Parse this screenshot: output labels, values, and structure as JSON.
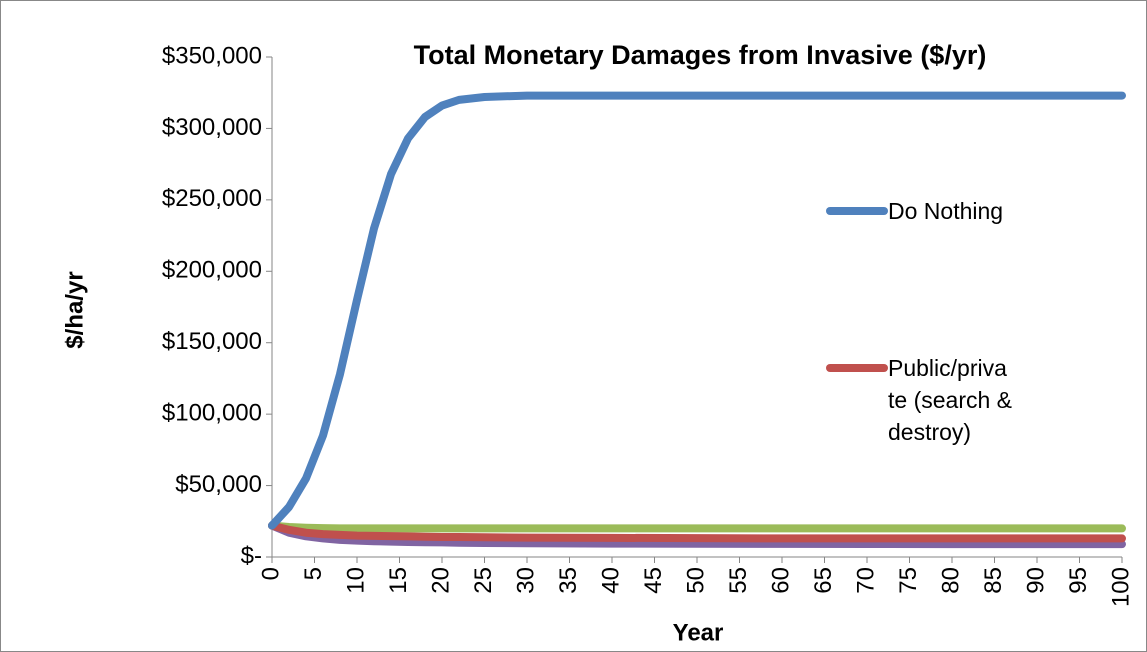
{
  "chart_data": {
    "type": "line",
    "title": "Total Monetary Damages from Invasive ($/yr)",
    "x_label": "Year",
    "y_label": "$/ha/yr",
    "x": [
      0,
      2,
      4,
      6,
      8,
      10,
      12,
      14,
      16,
      18,
      20,
      22,
      25,
      30,
      40,
      50,
      60,
      70,
      80,
      90,
      100
    ],
    "series": [
      {
        "name": "Do Nothing",
        "color": "#4f81bd",
        "values": [
          22000,
          35000,
          55000,
          85000,
          128000,
          180000,
          230000,
          268000,
          293000,
          308000,
          316000,
          320000,
          322000,
          323000,
          323000,
          323000,
          323000,
          323000,
          323000,
          323000,
          323000
        ]
      },
      {
        "name": "Public/private (search & destroy)",
        "color": "#c0504d",
        "values": [
          22000,
          19000,
          17000,
          16000,
          15500,
          15000,
          14800,
          14600,
          14400,
          14200,
          14000,
          14000,
          13800,
          13600,
          13400,
          13200,
          13000,
          13000,
          13000,
          13000,
          13000
        ]
      },
      {
        "color": "#9bbb59",
        "values": [
          22000,
          21000,
          20500,
          20200,
          20000,
          20000,
          20000,
          20000,
          20000,
          20000,
          20000,
          20000,
          20000,
          20000,
          20000,
          20000,
          20000,
          20000,
          20000,
          20000,
          20000
        ]
      },
      {
        "color": "#8064a2",
        "values": [
          22000,
          17000,
          14500,
          13000,
          12000,
          11500,
          11000,
          10800,
          10500,
          10300,
          10200,
          10000,
          9800,
          9600,
          9400,
          9300,
          9200,
          9100,
          9000,
          9000,
          9000
        ]
      }
    ],
    "xlim": [
      0,
      100
    ],
    "xticks": [
      0,
      5,
      10,
      15,
      20,
      25,
      30,
      35,
      40,
      45,
      50,
      55,
      60,
      65,
      70,
      75,
      80,
      85,
      90,
      95,
      100
    ],
    "ylim": [
      0,
      350000
    ],
    "yticks": [
      {
        "value": 0,
        "label": "$-"
      },
      {
        "value": 50000,
        "label": "$50,000"
      },
      {
        "value": 100000,
        "label": "$100,000"
      },
      {
        "value": 150000,
        "label": "$150,000"
      },
      {
        "value": 200000,
        "label": "$200,000"
      },
      {
        "value": 250000,
        "label": "$250,000"
      },
      {
        "value": 300000,
        "label": "$300,000"
      },
      {
        "value": 350000,
        "label": "$350,000"
      }
    ],
    "grid": false
  }
}
